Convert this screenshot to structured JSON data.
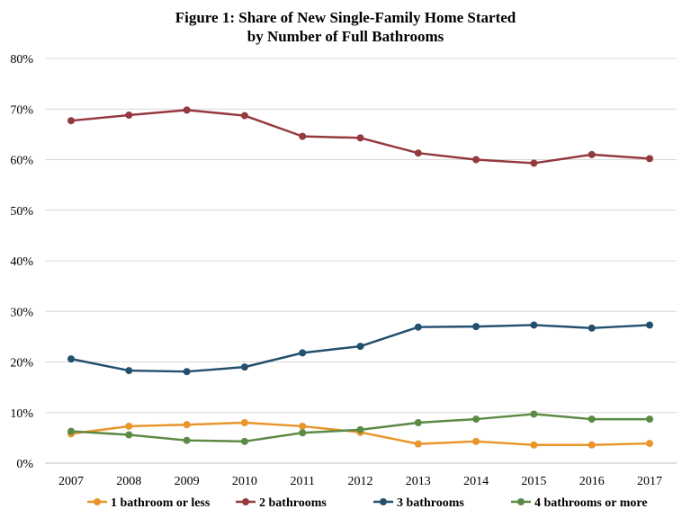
{
  "chart_data": {
    "type": "line",
    "title": [
      "Figure 1: Share of New Single-Family Home Started",
      "by Number of Full Bathrooms"
    ],
    "x": [
      2007,
      2008,
      2009,
      2010,
      2011,
      2012,
      2013,
      2014,
      2015,
      2016,
      2017
    ],
    "x_tick_labels": [
      "2007",
      "2008",
      "2009",
      "2010",
      "2011",
      "2012",
      "2013",
      "2014",
      "2015",
      "2016",
      "2017"
    ],
    "y_tick_labels": [
      "0%",
      "10%",
      "20%",
      "30%",
      "40%",
      "50%",
      "60%",
      "70%",
      "80%"
    ],
    "ylim": [
      0,
      80
    ],
    "grid": true,
    "legend_position": "bottom",
    "series": [
      {
        "name": "1 bathroom or less",
        "color": "#e8952a",
        "values": [
          5.8,
          7.3,
          7.6,
          8.0,
          7.3,
          6.1,
          3.8,
          4.3,
          3.6,
          3.6,
          3.9
        ]
      },
      {
        "name": "2 bathrooms",
        "color": "#943a3f",
        "values": [
          67.7,
          68.8,
          69.8,
          68.7,
          64.6,
          64.3,
          61.3,
          60.0,
          59.3,
          61.0,
          60.2
        ]
      },
      {
        "name": "3 bathrooms",
        "color": "#23506e",
        "values": [
          20.6,
          18.3,
          18.1,
          19.0,
          21.8,
          23.1,
          26.9,
          27.0,
          27.3,
          26.7,
          27.3
        ]
      },
      {
        "name": "4 bathrooms or more",
        "color": "#5b8a45",
        "values": [
          6.3,
          5.6,
          4.5,
          4.3,
          6.0,
          6.6,
          8.0,
          8.7,
          9.7,
          8.7,
          8.7
        ]
      }
    ]
  }
}
